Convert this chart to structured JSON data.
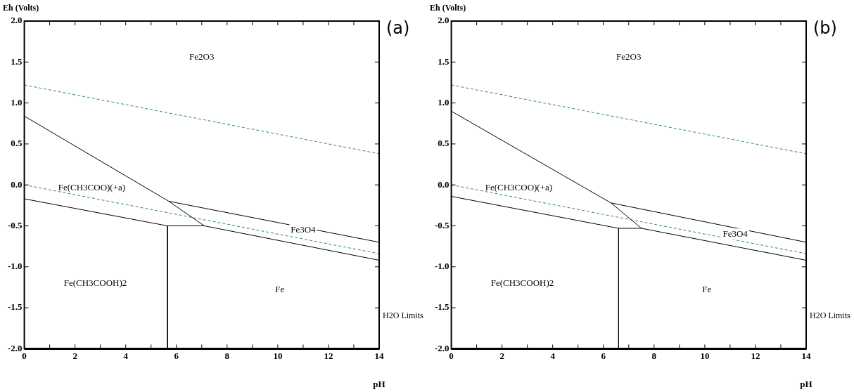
{
  "chart_data": [
    {
      "type": "line",
      "title": "(a)",
      "xlabel": "pH",
      "ylabel": "Eh (Volts)",
      "xlim": [
        0,
        14
      ],
      "ylim": [
        -2,
        2
      ],
      "xticks": [
        0,
        {
          "value": 1,
          "label": null
        },
        2,
        {
          "value": 3,
          "label": null
        },
        4,
        {
          "value": 5,
          "label": null
        },
        6,
        {
          "value": 7,
          "label": null
        },
        8,
        {
          "value": 9,
          "label": null
        },
        10,
        {
          "value": 11,
          "label": null
        },
        12,
        {
          "value": 13,
          "label": null
        },
        14
      ],
      "yticks": [
        {
          "value": -2,
          "label": "-2.0"
        },
        -1.5,
        {
          "value": -1,
          "label": "-1.0"
        },
        -0.5,
        {
          "value": 0,
          "label": "0.0"
        },
        0.5,
        {
          "value": 1,
          "label": "1.0"
        },
        1.5,
        {
          "value": 2,
          "label": "2.0"
        }
      ],
      "series": [
        {
          "color": "#000000",
          "x": [
            0,
            5.7,
            7.1
          ],
          "values": [
            0.84,
            -0.2,
            -0.5
          ]
        },
        {
          "color": "#000000",
          "x": [
            5.7,
            14
          ],
          "values": [
            -0.2,
            -0.7
          ]
        },
        {
          "color": "#000000",
          "x": [
            0,
            5.65,
            7.1,
            14
          ],
          "values": [
            -0.17,
            -0.5,
            -0.5,
            -0.92
          ]
        },
        {
          "color": "#000000",
          "x": [
            5.65,
            5.65
          ],
          "values": [
            -0.5,
            -2
          ]
        },
        {
          "color": "#2e7f8f",
          "line_style": "dashed",
          "x": [
            0,
            14
          ],
          "values": [
            1.22,
            0.38
          ]
        },
        {
          "color": "#2e7f8f",
          "line_style": "dashed",
          "x": [
            0,
            14
          ],
          "values": [
            0,
            -0.84
          ]
        }
      ],
      "annotations": [
        "Fe2O3",
        "Fe(CH3COO)(+a)",
        {
          "text": "Fe3O4",
          "x": 11,
          "y": -0.55
        },
        "Fe(CH3COOH)2",
        "Fe",
        "H2O Limits"
      ]
    },
    {
      "type": "line",
      "title": "(b)",
      "xlabel": "pH",
      "ylabel": "Eh (Volts)",
      "xlim": [
        0,
        14
      ],
      "ylim": [
        -2,
        2
      ],
      "xticks": [
        0,
        {
          "value": 1,
          "label": null
        },
        2,
        {
          "value": 3,
          "label": null
        },
        4,
        {
          "value": 5,
          "label": null
        },
        6,
        {
          "value": 7,
          "label": null
        },
        8,
        {
          "value": 9,
          "label": null
        },
        10,
        {
          "value": 11,
          "label": null
        },
        12,
        {
          "value": 13,
          "label": null
        },
        14
      ],
      "yticks": [
        {
          "value": -2,
          "label": "-2.0"
        },
        -1.5,
        {
          "value": -1,
          "label": "-1.0"
        },
        -0.5,
        {
          "value": 0,
          "label": "0.0"
        },
        0.5,
        {
          "value": 1,
          "label": "1.0"
        },
        1.5,
        {
          "value": 2,
          "label": "2.0"
        }
      ],
      "series": [
        {
          "color": "#000000",
          "x": [
            0,
            6.3,
            7.5
          ],
          "values": [
            0.9,
            -0.22,
            -0.53
          ]
        },
        {
          "color": "#000000",
          "x": [
            6.3,
            14
          ],
          "values": [
            -0.22,
            -0.7
          ]
        },
        {
          "color": "#000000",
          "x": [
            0,
            6.6,
            7.5,
            14
          ],
          "values": [
            -0.14,
            -0.53,
            -0.53,
            -0.92
          ]
        },
        {
          "color": "#000000",
          "x": [
            6.6,
            6.6
          ],
          "values": [
            -0.53,
            -2
          ]
        },
        {
          "color": "#2e7f8f",
          "line_style": "dashed",
          "x": [
            0,
            14
          ],
          "values": [
            1.22,
            0.38
          ]
        },
        {
          "color": "#2e7f8f",
          "line_style": "dashed",
          "x": [
            0,
            14
          ],
          "values": [
            0,
            -0.84
          ]
        }
      ],
      "annotations": [
        "Fe2O3",
        "Fe(CH3COO)(+a)",
        {
          "text": "Fe3O4",
          "x": 11.2,
          "y": -0.6
        },
        "Fe(CH3COOH)2",
        "Fe",
        "H2O Limits"
      ]
    }
  ]
}
